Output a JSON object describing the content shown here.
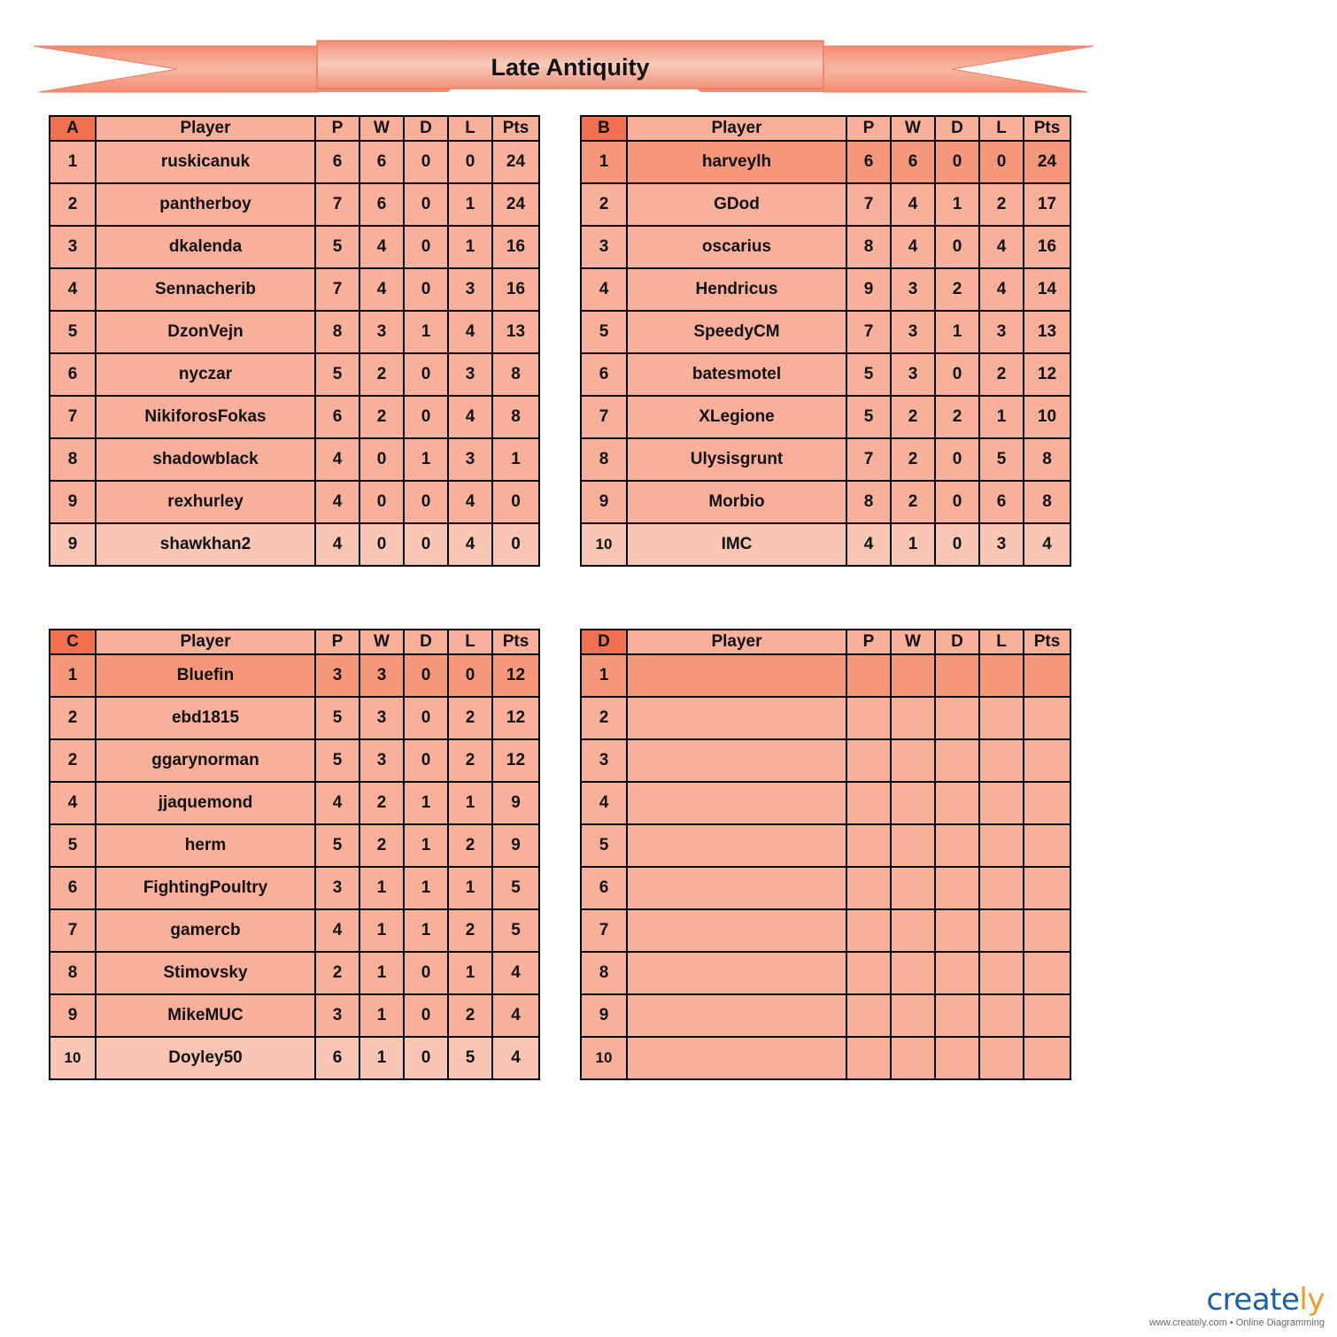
{
  "title": "Late Antiquity",
  "colors": {
    "header_group": "#f07050",
    "row": "#f8b09b",
    "row_highlight": "#f5977a",
    "row_light": "#f9c6b6",
    "banner": "#f4a088"
  },
  "columns": [
    "Player",
    "P",
    "W",
    "D",
    "L",
    "Pts"
  ],
  "groups": [
    {
      "label": "A",
      "highlight_first": false,
      "last_row_light": true,
      "rows": [
        [
          "1",
          "ruskicanuk",
          "6",
          "6",
          "0",
          "0",
          "24"
        ],
        [
          "2",
          "pantherboy",
          "7",
          "6",
          "0",
          "1",
          "24"
        ],
        [
          "3",
          "dkalenda",
          "5",
          "4",
          "0",
          "1",
          "16"
        ],
        [
          "4",
          "Sennacherib",
          "7",
          "4",
          "0",
          "3",
          "16"
        ],
        [
          "5",
          "DzonVejn",
          "8",
          "3",
          "1",
          "4",
          "13"
        ],
        [
          "6",
          "nyczar",
          "5",
          "2",
          "0",
          "3",
          "8"
        ],
        [
          "7",
          "NikiforosFokas",
          "6",
          "2",
          "0",
          "4",
          "8"
        ],
        [
          "8",
          "shadowblack",
          "4",
          "0",
          "1",
          "3",
          "1"
        ],
        [
          "9",
          "rexhurley",
          "4",
          "0",
          "0",
          "4",
          "0"
        ],
        [
          "9",
          "shawkhan2",
          "4",
          "0",
          "0",
          "4",
          "0"
        ]
      ]
    },
    {
      "label": "B",
      "highlight_first": true,
      "last_row_light": true,
      "rows": [
        [
          "1",
          "harveylh",
          "6",
          "6",
          "0",
          "0",
          "24"
        ],
        [
          "2",
          "GDod",
          "7",
          "4",
          "1",
          "2",
          "17"
        ],
        [
          "3",
          "oscarius",
          "8",
          "4",
          "0",
          "4",
          "16"
        ],
        [
          "4",
          "Hendricus",
          "9",
          "3",
          "2",
          "4",
          "14"
        ],
        [
          "5",
          "SpeedyCM",
          "7",
          "3",
          "1",
          "3",
          "13"
        ],
        [
          "6",
          "batesmotel",
          "5",
          "3",
          "0",
          "2",
          "12"
        ],
        [
          "7",
          "XLegione",
          "5",
          "2",
          "2",
          "1",
          "10"
        ],
        [
          "8",
          "Ulysisgrunt",
          "7",
          "2",
          "0",
          "5",
          "8"
        ],
        [
          "9",
          "Morbio",
          "8",
          "2",
          "0",
          "6",
          "8"
        ],
        [
          "10",
          "IMC",
          "4",
          "1",
          "0",
          "3",
          "4"
        ]
      ]
    },
    {
      "label": "C",
      "highlight_first": true,
      "last_row_light": true,
      "rows": [
        [
          "1",
          "Bluefin",
          "3",
          "3",
          "0",
          "0",
          "12"
        ],
        [
          "2",
          "ebd1815",
          "5",
          "3",
          "0",
          "2",
          "12"
        ],
        [
          "2",
          "ggarynorman",
          "5",
          "3",
          "0",
          "2",
          "12"
        ],
        [
          "4",
          "jjaquemond",
          "4",
          "2",
          "1",
          "1",
          "9"
        ],
        [
          "5",
          "herm",
          "5",
          "2",
          "1",
          "2",
          "9"
        ],
        [
          "6",
          "FightingPoultry",
          "3",
          "1",
          "1",
          "1",
          "5"
        ],
        [
          "7",
          "gamercb",
          "4",
          "1",
          "1",
          "2",
          "5"
        ],
        [
          "8",
          "Stimovsky",
          "2",
          "1",
          "0",
          "1",
          "4"
        ],
        [
          "9",
          "MikeMUC",
          "3",
          "1",
          "0",
          "2",
          "4"
        ],
        [
          "10",
          "Doyley50",
          "6",
          "1",
          "0",
          "5",
          "4"
        ]
      ]
    },
    {
      "label": "D",
      "highlight_first": true,
      "last_row_light": false,
      "rows": [
        [
          "1",
          "",
          "",
          "",
          "",
          "",
          ""
        ],
        [
          "2",
          "",
          "",
          "",
          "",
          "",
          ""
        ],
        [
          "3",
          "",
          "",
          "",
          "",
          "",
          ""
        ],
        [
          "4",
          "",
          "",
          "",
          "",
          "",
          ""
        ],
        [
          "5",
          "",
          "",
          "",
          "",
          "",
          ""
        ],
        [
          "6",
          "",
          "",
          "",
          "",
          "",
          ""
        ],
        [
          "7",
          "",
          "",
          "",
          "",
          "",
          ""
        ],
        [
          "8",
          "",
          "",
          "",
          "",
          "",
          ""
        ],
        [
          "9",
          "",
          "",
          "",
          "",
          "",
          ""
        ],
        [
          "10",
          "",
          "",
          "",
          "",
          "",
          ""
        ]
      ]
    }
  ],
  "logo": {
    "brand": "creately",
    "tagline": "www.creately.com • Online Diagramming"
  }
}
